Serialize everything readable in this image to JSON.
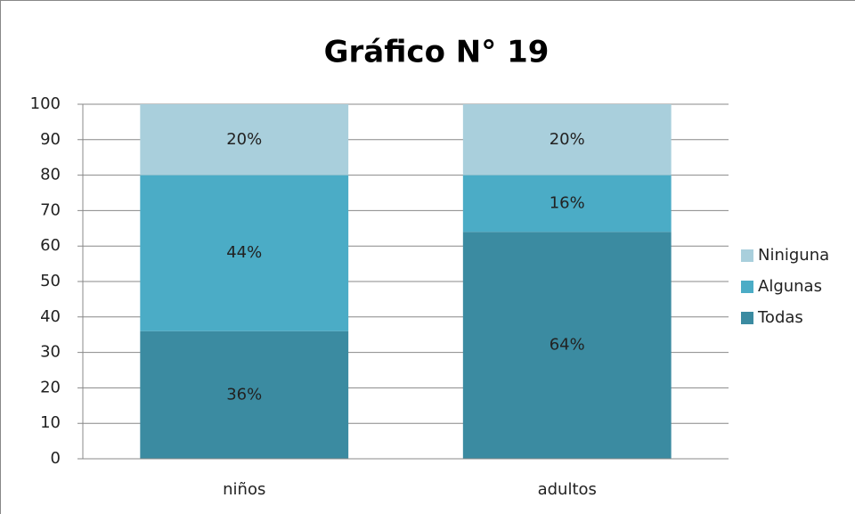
{
  "chart_data": {
    "type": "stacked_bar",
    "title": "Gráfico N° 19",
    "categories": [
      "niños",
      "adultos"
    ],
    "series": [
      {
        "name": "Todas",
        "color": "#3b8ba1",
        "values": [
          36,
          64
        ],
        "value_labels": [
          "36%",
          "64%"
        ]
      },
      {
        "name": "Algunas",
        "color": "#4bacc6",
        "values": [
          44,
          16
        ],
        "value_labels": [
          "44%",
          "16%"
        ]
      },
      {
        "name": "Niniguna",
        "color": "#a9cfdc",
        "values": [
          20,
          20
        ],
        "value_labels": [
          "20%",
          "20%"
        ]
      }
    ],
    "ylim": [
      0,
      100
    ],
    "yticks": [
      0,
      10,
      20,
      30,
      40,
      50,
      60,
      70,
      80,
      90,
      100
    ],
    "grid": true,
    "legend": "right"
  }
}
